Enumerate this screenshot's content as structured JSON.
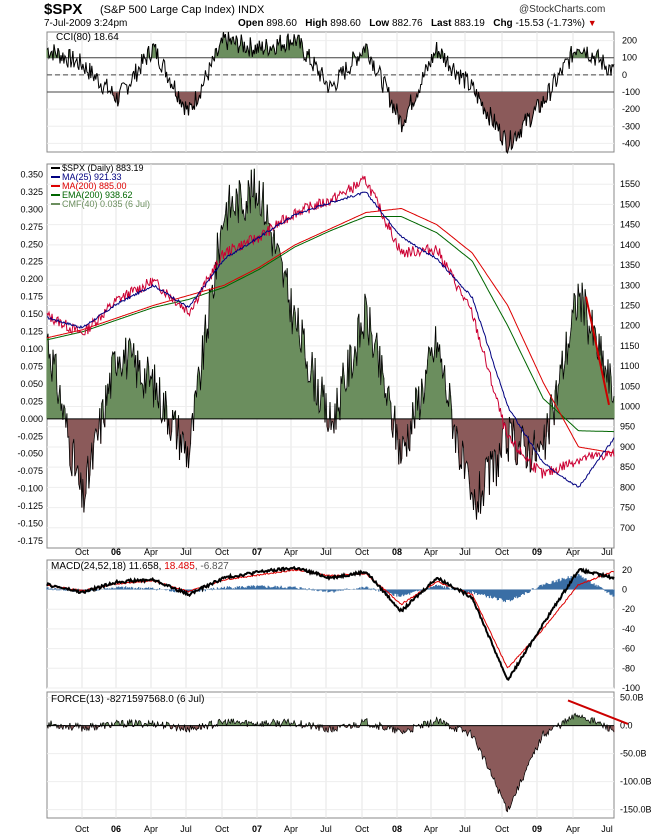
{
  "header": {
    "symbol": "$SPX",
    "description": "(S&P 500 Large Cap Index) INDX",
    "brand": "@StockCharts.com",
    "date": "7-Jul-2009 3:24pm",
    "open_label": "Open",
    "open": "898.60",
    "high_label": "High",
    "high": "898.60",
    "low_label": "Low",
    "low": "882.76",
    "last_label": "Last",
    "last": "883.19",
    "chg_label": "Chg",
    "chg": "-15.53 (-1.73%)"
  },
  "colors": {
    "price": "#cc0033",
    "ma25": "#000080",
    "ma200": "#dd0000",
    "ema200": "#006600",
    "cmf_fill": "#6b8e5e",
    "neg_fill": "#8b5a5a",
    "macd_hist": "#3a6ea5"
  },
  "chart_data": [
    {
      "type": "line",
      "panel": "CCI",
      "legend": "CCI(80) 18.64",
      "ylim": [
        -450,
        250
      ],
      "yticks": [
        "200",
        "100",
        "0",
        "-100",
        "-200",
        "-300",
        "-400"
      ],
      "reference_lines": [
        100,
        0,
        -100
      ],
      "x": [
        "2005-08",
        "2005-10",
        "2006-01",
        "2006-04",
        "2006-07",
        "2006-10",
        "2007-01",
        "2007-04",
        "2007-07",
        "2007-10",
        "2008-01",
        "2008-04",
        "2008-07",
        "2008-10",
        "2009-01",
        "2009-04",
        "2009-07"
      ],
      "values": [
        150,
        60,
        -140,
        160,
        -220,
        200,
        150,
        210,
        -80,
        170,
        -280,
        150,
        -80,
        -400,
        -160,
        180,
        18.64
      ]
    },
    {
      "type": "line",
      "panel": "Price",
      "legend": [
        "$SPX (Daily) 883.19",
        "MA(25) 921.33",
        "MA(200) 885.00",
        "EMA(200) 938.62",
        "CMF(40) 0.035 (6 Jul)"
      ],
      "ylim": [
        650,
        1600
      ],
      "yticks_right": [
        "1550",
        "1500",
        "1450",
        "1400",
        "1350",
        "1300",
        "1250",
        "1200",
        "1150",
        "1100",
        "1050",
        "1000",
        "950",
        "900",
        "850",
        "800",
        "750",
        "700"
      ],
      "yticks_left": [
        "0.350",
        "0.325",
        "0.300",
        "0.275",
        "0.250",
        "0.225",
        "0.200",
        "0.175",
        "0.150",
        "0.125",
        "0.100",
        "0.075",
        "0.050",
        "0.025",
        "0.000",
        "-0.025",
        "-0.050",
        "-0.075",
        "-0.100",
        "-0.125",
        "-0.150",
        "-0.175"
      ],
      "x": [
        "2005-08",
        "2005-10",
        "2006-01",
        "2006-04",
        "2006-07",
        "2006-10",
        "2007-01",
        "2007-04",
        "2007-07",
        "2007-10",
        "2008-01",
        "2008-04",
        "2008-07",
        "2008-10",
        "2009-01",
        "2009-04",
        "2009-07"
      ],
      "series": [
        {
          "name": "$SPX (Daily) 883.19",
          "values": [
            1225,
            1180,
            1265,
            1310,
            1235,
            1380,
            1420,
            1480,
            1510,
            1560,
            1380,
            1390,
            1230,
            920,
            830,
            870,
            883
          ]
        },
        {
          "name": "MA(25) 921.33",
          "values": [
            1220,
            1195,
            1255,
            1300,
            1245,
            1365,
            1420,
            1475,
            1505,
            1530,
            1420,
            1365,
            1270,
            1000,
            860,
            800,
            921
          ]
        },
        {
          "name": "MA(200) 885.00",
          "values": [
            1170,
            1190,
            1220,
            1250,
            1275,
            1300,
            1345,
            1400,
            1440,
            1480,
            1490,
            1450,
            1380,
            1250,
            1060,
            900,
            885
          ]
        },
        {
          "name": "EMA(200) 938.62",
          "values": [
            1165,
            1185,
            1215,
            1245,
            1265,
            1295,
            1340,
            1395,
            1435,
            1470,
            1470,
            1430,
            1360,
            1200,
            1020,
            940,
            938
          ]
        },
        {
          "name": "CMF(40) 0.035 (6 Jul)",
          "values": [
            0.12,
            -0.12,
            0.1,
            0.05,
            -0.05,
            0.3,
            0.33,
            0.14,
            -0.01,
            0.15,
            -0.05,
            0.11,
            -0.13,
            -0.03,
            -0.05,
            0.18,
            0.035
          ]
        }
      ]
    },
    {
      "type": "line",
      "panel": "MACD",
      "legend": [
        "MACD(24,52,18) 11.658",
        "18.485",
        "-6.827"
      ],
      "ylim": [
        -100,
        30
      ],
      "yticks": [
        "20",
        "0",
        "-20",
        "-40",
        "-60",
        "-80",
        "-100"
      ],
      "x": [
        "2005-08",
        "2005-10",
        "2006-01",
        "2006-04",
        "2006-07",
        "2006-10",
        "2007-01",
        "2007-04",
        "2007-07",
        "2007-10",
        "2008-01",
        "2008-04",
        "2008-07",
        "2008-10",
        "2009-01",
        "2009-04",
        "2009-07"
      ],
      "series": [
        {
          "name": "MACD(24,52,18) 11.658",
          "values": [
            5,
            -3,
            8,
            10,
            -5,
            12,
            18,
            22,
            12,
            18,
            -22,
            12,
            -8,
            -92,
            -35,
            20,
            11.658
          ]
        },
        {
          "name": "18.485",
          "values": [
            4,
            -1,
            6,
            9,
            -2,
            10,
            15,
            20,
            14,
            16,
            -15,
            8,
            -5,
            -80,
            -40,
            5,
            18.485
          ]
        },
        {
          "name": "-6.827",
          "values": [
            1,
            -2,
            2,
            1,
            -3,
            2,
            3,
            2,
            -2,
            2,
            -7,
            4,
            -3,
            -12,
            5,
            15,
            -6.827
          ]
        }
      ]
    },
    {
      "type": "area",
      "panel": "FORCE",
      "legend": "FORCE(13) -8271597568.0 (6 Jul)",
      "ylim": [
        -165,
        60
      ],
      "yticks": [
        "50.0B",
        "0.0",
        "-50.0B",
        "-100.0B",
        "-150.0B"
      ],
      "x": [
        "2005-08",
        "2005-10",
        "2006-01",
        "2006-04",
        "2006-07",
        "2006-10",
        "2007-01",
        "2007-04",
        "2007-07",
        "2007-10",
        "2008-01",
        "2008-04",
        "2008-07",
        "2008-10",
        "2009-01",
        "2009-04",
        "2009-07"
      ],
      "values": [
        3,
        -4,
        3,
        4,
        -6,
        6,
        4,
        5,
        -8,
        6,
        -12,
        8,
        -15,
        -150,
        -15,
        20,
        -8.27
      ]
    }
  ],
  "time_axis": [
    "Oct",
    "06",
    "Apr",
    "Jul",
    "Oct",
    "07",
    "Apr",
    "Jul",
    "Oct",
    "08",
    "Apr",
    "Jul",
    "Oct",
    "09",
    "Apr",
    "Jul"
  ]
}
